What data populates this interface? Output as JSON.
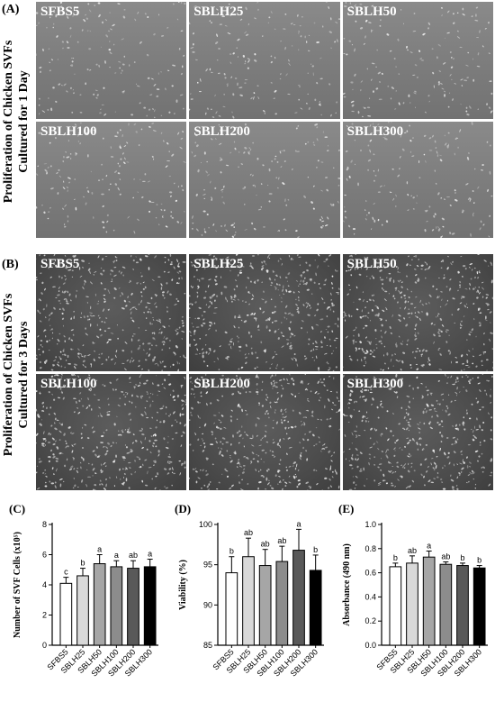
{
  "panel_a": {
    "label": "(A)",
    "side_title_line1": "Proliferation of Chicken SVFs",
    "side_title_line2": "Cultured for 1 Day",
    "tiles": [
      "SFBS5",
      "SBLH25",
      "SBLH50",
      "SBLH100",
      "SBLH200",
      "SBLH300"
    ]
  },
  "panel_b": {
    "label": "(B)",
    "side_title_line1": "Proliferation of Chicken SVFs",
    "side_title_line2": "Cultured for 3 Days",
    "tiles": [
      "SFBS5",
      "SBLH25",
      "SBLH50",
      "SBLH100",
      "SBLH200",
      "SBLH300"
    ]
  },
  "chart_data": [
    {
      "panel": "(C)",
      "type": "bar",
      "ylabel": "Number of SVF Cells (x10⁵)",
      "ylim": [
        0,
        8
      ],
      "yticks": [
        "0",
        "2",
        "4",
        "6",
        "8"
      ],
      "categories": [
        "SFBS5",
        "SBLH25",
        "SBLH50",
        "SBLH100",
        "SBLH200",
        "SBLH300"
      ],
      "values": [
        4.1,
        4.6,
        5.4,
        5.2,
        5.1,
        5.2
      ],
      "errors": [
        0.4,
        0.5,
        0.6,
        0.4,
        0.5,
        0.5
      ],
      "letters": [
        "c",
        "b",
        "a",
        "a",
        "ab",
        "a"
      ],
      "bar_colors": [
        "#ffffff",
        "#d9d9d9",
        "#a6a6a6",
        "#8c8c8c",
        "#595959",
        "#000000"
      ]
    },
    {
      "panel": "(D)",
      "type": "bar",
      "ylabel": "Viability (%)",
      "ylim": [
        85,
        100
      ],
      "yticks": [
        "85",
        "90",
        "95",
        "100"
      ],
      "categories": [
        "SFBS5",
        "SBLH25",
        "SBLH50",
        "SBLH100",
        "SBLH200",
        "SBLH300"
      ],
      "values": [
        94.0,
        96.0,
        94.9,
        95.4,
        96.8,
        94.3
      ],
      "errors": [
        2.0,
        2.3,
        2.0,
        1.9,
        2.6,
        1.9
      ],
      "letters": [
        "b",
        "ab",
        "ab",
        "ab",
        "a",
        "b"
      ],
      "bar_colors": [
        "#ffffff",
        "#d9d9d9",
        "#a6a6a6",
        "#8c8c8c",
        "#595959",
        "#000000"
      ]
    },
    {
      "panel": "(E)",
      "type": "bar",
      "ylabel": "Absorbance (490 nm)",
      "ylim": [
        0,
        1.0
      ],
      "yticks": [
        "0.0",
        "0.2",
        "0.4",
        "0.6",
        "0.8",
        "1.0"
      ],
      "categories": [
        "SFBS5",
        "SBLH25",
        "SBLH50",
        "SBLH100",
        "SBLH200",
        "SBLH300"
      ],
      "values": [
        0.65,
        0.68,
        0.73,
        0.67,
        0.66,
        0.64
      ],
      "errors": [
        0.03,
        0.06,
        0.05,
        0.02,
        0.02,
        0.02
      ],
      "letters": [
        "b",
        "ab",
        "a",
        "ab",
        "b",
        "b"
      ],
      "bar_colors": [
        "#ffffff",
        "#d9d9d9",
        "#a6a6a6",
        "#8c8c8c",
        "#595959",
        "#000000"
      ]
    }
  ]
}
